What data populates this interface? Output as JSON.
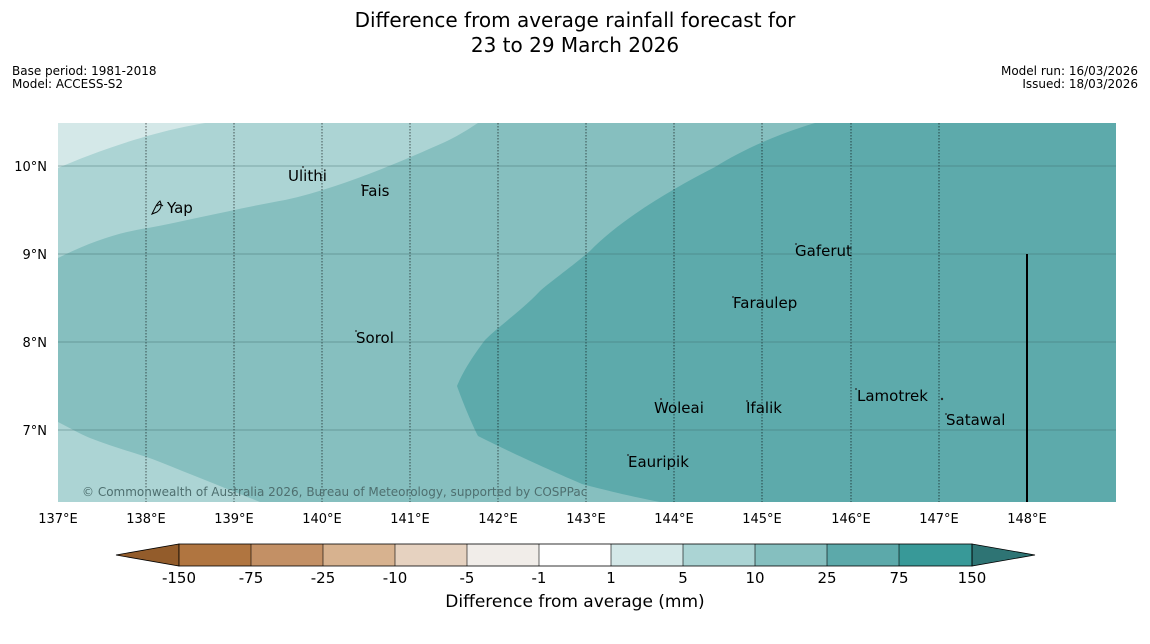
{
  "title_line1": "Difference from average rainfall forecast for",
  "title_line2": "23 to 29 March 2026",
  "meta": {
    "base_period": "Base period: 1981-2018",
    "model": "Model: ACCESS-S2",
    "model_run": "Model run: 16/03/2026",
    "issued": "Issued: 18/03/2026"
  },
  "map": {
    "lon_range": [
      137,
      149
    ],
    "lat_range": [
      6.2,
      10.5
    ],
    "lon_ticks": [
      "137°E",
      "138°E",
      "139°E",
      "140°E",
      "141°E",
      "142°E",
      "143°E",
      "144°E",
      "145°E",
      "146°E",
      "147°E",
      "148°E"
    ],
    "lat_ticks": [
      "10°N",
      "9°N",
      "8°N",
      "7°N"
    ],
    "places": [
      {
        "name": "Yap"
      },
      {
        "name": "Ulithi"
      },
      {
        "name": "Fais"
      },
      {
        "name": "Gaferut"
      },
      {
        "name": "Faraulep"
      },
      {
        "name": "Sorol"
      },
      {
        "name": "Lamotrek"
      },
      {
        "name": "Woleai"
      },
      {
        "name": "Ifalik"
      },
      {
        "name": "Satawal"
      },
      {
        "name": "Eauripik"
      }
    ],
    "copyright": "© Commonwealth of Australia 2026, Bureau of Meteorology, supported by COSPPac"
  },
  "colorbar": {
    "title": "Difference from average (mm)",
    "tick_labels": [
      "-150",
      "-75",
      "-25",
      "-10",
      "-5",
      "-1",
      "1",
      "5",
      "10",
      "25",
      "75",
      "150"
    ],
    "colors": [
      "#935c2b",
      "#b07540",
      "#c39065",
      "#d7b28f",
      "#e6d2c0",
      "#f1ede9",
      "#ffffff",
      "#d4e8e8",
      "#abd4d4",
      "#85bfbf",
      "#5ca9aa",
      "#389998",
      "#2e7474"
    ]
  },
  "shading_colors": {
    "band_1_5": "#d4e8e8",
    "band_5_10": "#acd4d4",
    "band_10_25": "#86bfbf",
    "band_25_75": "#5daaab"
  }
}
